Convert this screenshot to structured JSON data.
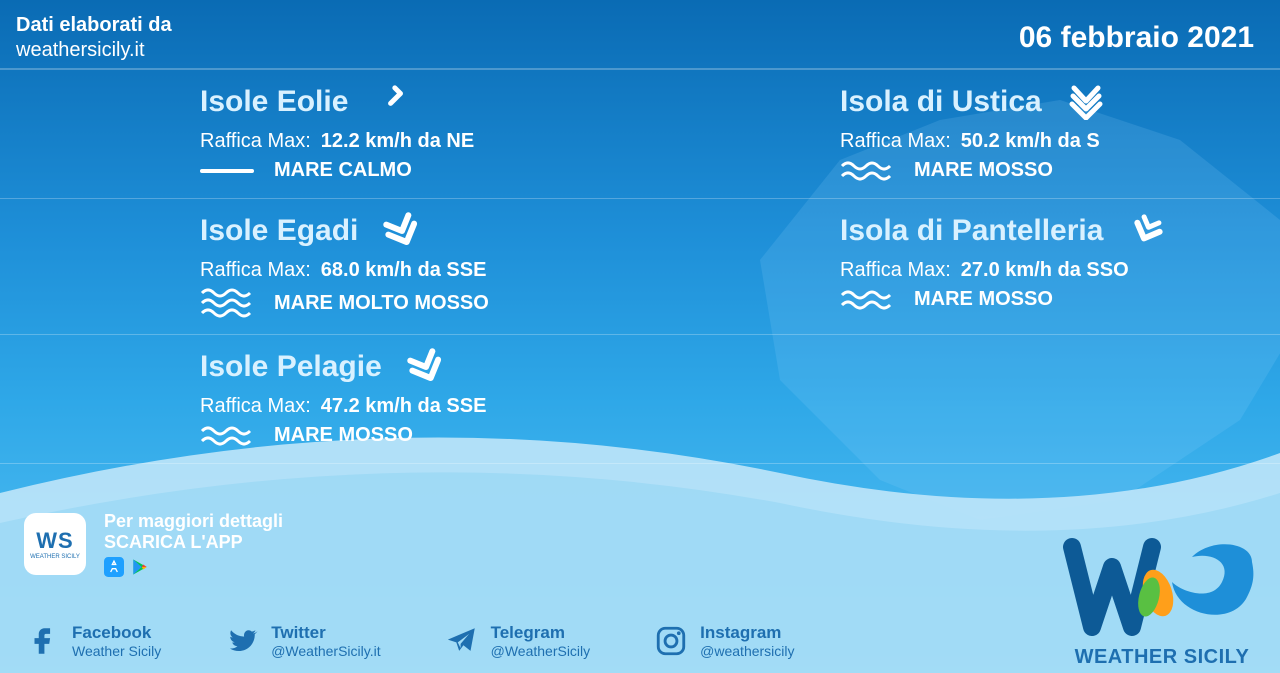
{
  "header": {
    "source_label": "Dati elaborati da",
    "source_site": "weathersicily.it",
    "date": "06 febbraio 2021"
  },
  "locations": [
    {
      "name": "Isole Eolie",
      "gust_label": "Raffica Max:",
      "gust_value": "12.2 km/h da NE",
      "wind_icon": "wind-weak",
      "wind_direction": "ne",
      "sea_icon": "sea-calm",
      "sea_text": "MARE CALMO"
    },
    {
      "name": "Isola di Ustica",
      "gust_label": "Raffica Max:",
      "gust_value": "50.2 km/h da S",
      "wind_icon": "wind-very-strong",
      "wind_direction": "s",
      "sea_icon": "sea-mosso",
      "sea_text": "MARE MOSSO"
    },
    {
      "name": "Isole Egadi",
      "gust_label": "Raffica Max:",
      "gust_value": "68.0 km/h da SSE",
      "wind_icon": "wind-strong",
      "wind_direction": "sse",
      "sea_icon": "sea-molto-mosso",
      "sea_text": "MARE MOLTO MOSSO"
    },
    {
      "name": "Isola di Pantelleria",
      "gust_label": "Raffica Max:",
      "gust_value": "27.0 km/h da SSO",
      "wind_icon": "wind-moderate",
      "wind_direction": "sso",
      "sea_icon": "sea-mosso",
      "sea_text": "MARE MOSSO"
    },
    {
      "name": "Isole Pelagie",
      "gust_label": "Raffica Max:",
      "gust_value": "47.2 km/h da SSE",
      "wind_icon": "wind-strong",
      "wind_direction": "sse",
      "sea_icon": "sea-mosso",
      "sea_text": "MARE MOSSO"
    }
  ],
  "footer_app": {
    "line1": "Per maggiori dettagli",
    "line2": "SCARICA L'APP",
    "badge_text": "WS",
    "badge_sub": "WEATHER SICILY"
  },
  "socials": {
    "facebook": {
      "name": "Facebook",
      "handle": "Weather Sicily"
    },
    "twitter": {
      "name": "Twitter",
      "handle": "@WeatherSicily.it"
    },
    "telegram": {
      "name": "Telegram",
      "handle": "@WeatherSicily"
    },
    "instagram": {
      "name": "Instagram",
      "handle": "@weathersicily"
    }
  },
  "brand": {
    "name": "WEATHER SICILY"
  },
  "colors": {
    "text_light": "#ffffff",
    "text_title": "#d9f1ff",
    "social_text": "#1e6fb0",
    "bg_top": "#0a6bb4",
    "bg_bottom": "#5bc5f5",
    "divider": "rgba(255,255,255,0.25)",
    "curve_fill": "#bfe6fa"
  },
  "wind_rotation": {
    "ne": 45,
    "s": 180,
    "sse": 157,
    "sso": 202
  }
}
